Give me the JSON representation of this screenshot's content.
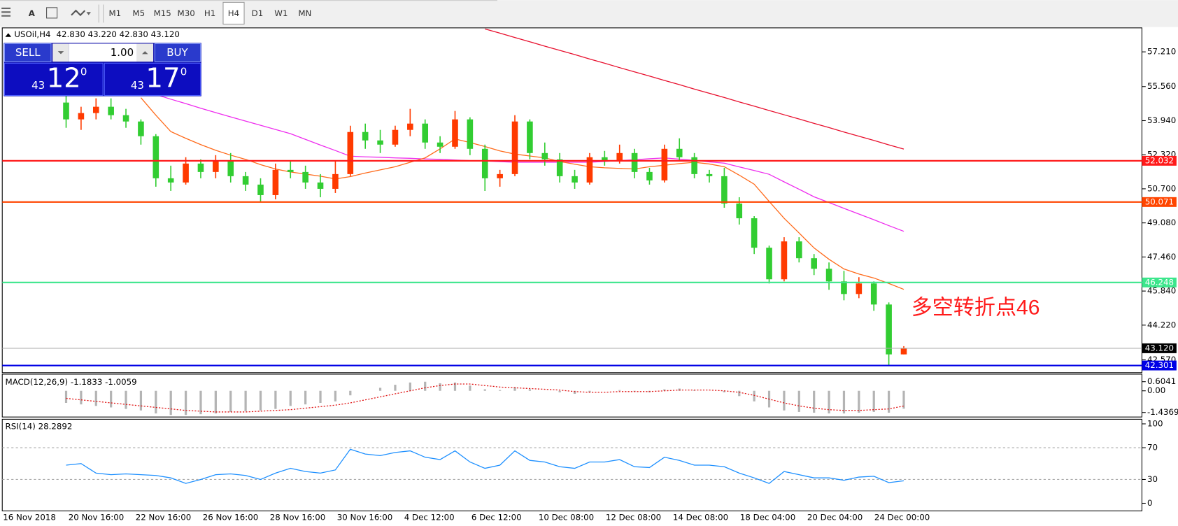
{
  "toolbar": {
    "tools": [
      "A"
    ],
    "timeframes": [
      "M1",
      "M5",
      "M15",
      "M30",
      "H1",
      "H4",
      "D1",
      "W1",
      "MN"
    ],
    "selected": "H4"
  },
  "trade_panel": {
    "sell": "SELL",
    "buy": "BUY",
    "volume": "1.00",
    "sell_price": {
      "big": "43",
      "main": "12",
      "sup": "0"
    },
    "buy_price": {
      "big": "43",
      "main": "17",
      "sup": "0"
    }
  },
  "chart_data": {
    "type": "candlestick",
    "title": "USOil,H4",
    "ohlc_text": "42.830 43.220 42.830 43.120",
    "categories": [
      "16 Nov 2018",
      "20 Nov 16:00",
      "22 Nov 16:00",
      "26 Nov 16:00",
      "28 Nov 16:00",
      "30 Nov 16:00",
      "4 Dec 12:00",
      "6 Dec 12:00",
      "10 Dec 08:00",
      "12 Dec 08:00",
      "14 Dec 08:00",
      "18 Dec 04:00",
      "20 Dec 04:00",
      "24 Dec 00:00"
    ],
    "up_color": "#ff3a00",
    "down_color": "#32cd32",
    "candles": [
      [
        54.8,
        55.6,
        53.6,
        54.0
      ],
      [
        54.0,
        54.6,
        53.5,
        54.3
      ],
      [
        54.3,
        55.0,
        54.0,
        54.6
      ],
      [
        54.6,
        55.0,
        54.0,
        54.2
      ],
      [
        54.2,
        54.5,
        53.6,
        53.9
      ],
      [
        53.9,
        54.0,
        52.8,
        53.2
      ],
      [
        53.2,
        53.3,
        50.8,
        51.2
      ],
      [
        51.2,
        51.8,
        50.6,
        51.0
      ],
      [
        51.0,
        52.2,
        50.9,
        51.9
      ],
      [
        51.9,
        52.1,
        51.2,
        51.5
      ],
      [
        51.5,
        52.3,
        51.2,
        52.0
      ],
      [
        52.0,
        52.4,
        51.0,
        51.3
      ],
      [
        51.3,
        51.5,
        50.6,
        50.9
      ],
      [
        50.9,
        51.2,
        50.1,
        50.4
      ],
      [
        50.4,
        51.9,
        50.2,
        51.6
      ],
      [
        51.6,
        52.0,
        51.2,
        51.5
      ],
      [
        51.5,
        51.8,
        50.7,
        51.0
      ],
      [
        51.0,
        51.4,
        50.3,
        50.7
      ],
      [
        50.7,
        52.0,
        50.5,
        51.4
      ],
      [
        51.4,
        53.7,
        51.3,
        53.4
      ],
      [
        53.4,
        53.8,
        52.6,
        53.0
      ],
      [
        53.0,
        53.5,
        52.4,
        52.8
      ],
      [
        52.8,
        53.7,
        52.7,
        53.5
      ],
      [
        53.5,
        54.5,
        53.2,
        53.8
      ],
      [
        53.8,
        54.0,
        52.6,
        52.9
      ],
      [
        52.9,
        53.2,
        52.4,
        52.7
      ],
      [
        52.7,
        54.4,
        52.6,
        54.0
      ],
      [
        54.0,
        54.1,
        52.3,
        52.6
      ],
      [
        52.6,
        52.8,
        50.6,
        51.2
      ],
      [
        51.2,
        51.6,
        50.8,
        51.4
      ],
      [
        51.4,
        54.2,
        51.3,
        53.9
      ],
      [
        53.9,
        54.0,
        52.1,
        52.4
      ],
      [
        52.4,
        52.9,
        51.8,
        52.1
      ],
      [
        52.1,
        52.4,
        51.0,
        51.3
      ],
      [
        51.3,
        51.6,
        50.7,
        51.0
      ],
      [
        51.0,
        52.4,
        50.9,
        52.2
      ],
      [
        52.2,
        52.5,
        51.8,
        52.0
      ],
      [
        52.0,
        52.8,
        51.9,
        52.4
      ],
      [
        52.4,
        52.6,
        51.2,
        51.5
      ],
      [
        51.5,
        51.7,
        50.9,
        51.1
      ],
      [
        51.1,
        52.8,
        51.0,
        52.6
      ],
      [
        52.6,
        53.1,
        52.0,
        52.2
      ],
      [
        52.2,
        52.4,
        51.2,
        51.4
      ],
      [
        51.4,
        51.6,
        51.0,
        51.3
      ],
      [
        51.3,
        51.7,
        49.8,
        50.0
      ],
      [
        50.0,
        50.3,
        49.0,
        49.3
      ],
      [
        49.3,
        49.4,
        47.6,
        47.9
      ],
      [
        47.9,
        48.0,
        46.2,
        46.4
      ],
      [
        46.4,
        48.4,
        46.3,
        48.2
      ],
      [
        48.2,
        48.4,
        47.2,
        47.4
      ],
      [
        47.4,
        47.6,
        46.6,
        46.9
      ],
      [
        46.9,
        47.2,
        45.9,
        46.3
      ],
      [
        46.3,
        46.8,
        45.4,
        45.7
      ],
      [
        45.7,
        46.5,
        45.5,
        46.2
      ],
      [
        46.2,
        46.3,
        44.9,
        45.2
      ],
      [
        45.2,
        45.3,
        42.3,
        42.83
      ],
      [
        42.83,
        43.22,
        42.83,
        43.12
      ]
    ],
    "ylim": [
      41.96,
      58.35
    ],
    "yticks": [
      {
        "value": 57.21,
        "label": "57.210"
      },
      {
        "value": 55.56,
        "label": "55.560"
      },
      {
        "value": 53.94,
        "label": "53.940"
      },
      {
        "value": 52.32,
        "label": "52.320"
      },
      {
        "value": 50.7,
        "label": "50.700"
      },
      {
        "value": 49.08,
        "label": "49.080"
      },
      {
        "value": 47.46,
        "label": "47.460"
      },
      {
        "value": 45.84,
        "label": "45.840"
      },
      {
        "value": 44.22,
        "label": "44.220"
      },
      {
        "value": 42.57,
        "label": "42.570"
      }
    ],
    "moving_averages": [
      {
        "color": "#e8102e",
        "values": [
          null,
          null,
          null,
          null,
          null,
          null,
          null,
          null,
          null,
          null,
          null,
          null,
          null,
          null,
          null,
          null,
          null,
          null,
          null,
          null,
          null,
          null,
          null,
          null,
          null,
          null,
          null,
          null,
          58.3,
          58.1,
          57.89,
          57.69,
          57.48,
          57.28,
          57.08,
          56.87,
          56.67,
          56.46,
          56.26,
          56.06,
          55.85,
          55.65,
          55.44,
          55.24,
          55.04,
          54.83,
          54.63,
          54.42,
          54.22,
          54.02,
          53.81,
          53.61,
          53.4,
          53.2,
          53.0,
          52.79,
          52.59
        ]
      },
      {
        "color": "#ee2cee",
        "values": [
          null,
          null,
          null,
          null,
          null,
          55.39,
          55.18,
          54.96,
          54.75,
          54.53,
          54.32,
          54.12,
          53.92,
          53.72,
          53.52,
          53.32,
          53.05,
          52.78,
          52.52,
          52.25,
          52.22,
          52.2,
          52.17,
          52.15,
          52.12,
          52.1,
          52.07,
          52.04,
          52.02,
          51.99,
          51.96,
          51.96,
          51.96,
          51.96,
          51.96,
          51.96,
          52.0,
          52.04,
          52.08,
          52.13,
          52.17,
          52.11,
          52.05,
          51.98,
          51.92,
          51.74,
          51.57,
          51.39,
          51.03,
          50.68,
          50.32,
          50.05,
          49.77,
          49.5,
          49.23,
          48.95,
          48.68
        ]
      },
      {
        "color": "#ff6a1a",
        "values": [
          null,
          null,
          null,
          null,
          null,
          55.03,
          54.2,
          53.42,
          53.1,
          52.8,
          52.53,
          52.3,
          52.1,
          51.85,
          51.64,
          51.5,
          51.4,
          51.3,
          51.17,
          51.28,
          51.45,
          51.6,
          51.75,
          51.96,
          52.17,
          52.6,
          53.07,
          52.9,
          52.71,
          52.5,
          52.35,
          52.26,
          52.17,
          52.0,
          51.87,
          51.75,
          51.7,
          51.67,
          51.64,
          51.75,
          51.82,
          51.9,
          51.96,
          51.88,
          51.75,
          51.35,
          50.92,
          50.1,
          49.3,
          48.6,
          47.89,
          47.35,
          46.89,
          46.65,
          46.46,
          46.2,
          45.92
        ]
      }
    ],
    "hlines": [
      {
        "value": 52.032,
        "color": "#ff1a1a"
      },
      {
        "value": 50.071,
        "color": "#ff4500"
      },
      {
        "value": 46.248,
        "color": "#3ce68c"
      },
      {
        "value": 43.12,
        "label": "43.120",
        "color": "#000000"
      },
      {
        "value": 42.301,
        "color": "#0000e6"
      }
    ],
    "annotation": {
      "text": "多空转折点46",
      "color": "#ff1a1a"
    },
    "macd": {
      "label": "MACD(12,26,9) -1.1833 -1.0059",
      "ylim": [
        -1.735,
        1.102
      ],
      "yticks": [
        0.6041,
        {
          "value": 0,
          "label": "0.00"
        },
        -1.4369
      ],
      "color": "#b4b4b4",
      "signal_color": "#e01818",
      "values": [
        -0.8,
        -0.9,
        -1.0,
        -1.1,
        -1.2,
        -1.3,
        -1.5,
        -1.6,
        -1.6,
        -1.55,
        -1.5,
        -1.4,
        -1.35,
        -1.3,
        -1.2,
        -1.0,
        -0.9,
        -0.8,
        -0.7,
        -0.3,
        0.0,
        0.2,
        0.4,
        0.55,
        0.6,
        0.5,
        0.55,
        0.35,
        0.1,
        0.05,
        0.25,
        0.1,
        0.0,
        -0.1,
        -0.2,
        -0.1,
        0.0,
        0.05,
        -0.05,
        -0.1,
        0.1,
        0.15,
        0.05,
        0.0,
        -0.1,
        -0.35,
        -0.7,
        -1.1,
        -1.3,
        -1.4,
        -1.45,
        -1.5,
        -1.5,
        -1.45,
        -1.4,
        -1.45,
        -1.1833
      ],
      "signal": [
        -0.5,
        -0.6,
        -0.7,
        -0.8,
        -0.9,
        -1.0,
        -1.1,
        -1.2,
        -1.3,
        -1.35,
        -1.4,
        -1.4,
        -1.4,
        -1.35,
        -1.3,
        -1.25,
        -1.15,
        -1.05,
        -0.95,
        -0.8,
        -0.6,
        -0.4,
        -0.2,
        0.0,
        0.2,
        0.35,
        0.45,
        0.45,
        0.35,
        0.25,
        0.2,
        0.15,
        0.1,
        0.05,
        -0.05,
        -0.1,
        -0.1,
        -0.05,
        -0.05,
        -0.05,
        0.0,
        0.05,
        0.05,
        0.05,
        0.0,
        -0.1,
        -0.3,
        -0.55,
        -0.8,
        -1.0,
        -1.15,
        -1.25,
        -1.3,
        -1.3,
        -1.25,
        -1.2,
        -1.0059
      ]
    },
    "rsi": {
      "label": "RSI(14) 28.2892",
      "ylim": [
        -9.6,
        105.8
      ],
      "yticks": [
        100,
        70,
        30,
        0
      ],
      "levels": [
        70,
        30
      ],
      "color": "#1e90ff",
      "values": [
        48,
        50,
        38,
        36,
        37,
        36,
        35,
        32,
        25,
        30,
        36,
        37,
        35,
        30,
        38,
        44,
        40,
        38,
        42,
        68,
        62,
        60,
        64,
        66,
        58,
        55,
        66,
        52,
        44,
        48,
        66,
        54,
        52,
        46,
        44,
        52,
        52,
        55,
        46,
        45,
        58,
        54,
        48,
        48,
        46,
        38,
        32,
        25,
        40,
        36,
        32,
        32,
        29,
        33,
        34,
        26,
        28.2892
      ]
    }
  }
}
